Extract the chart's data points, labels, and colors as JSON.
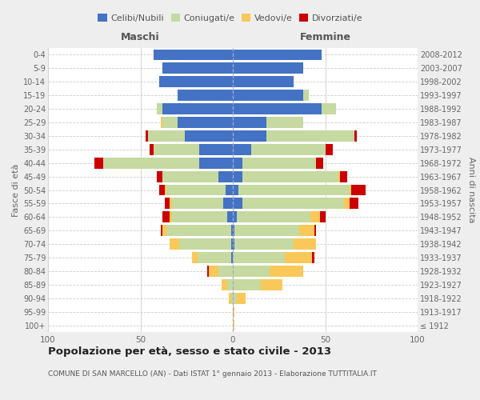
{
  "age_groups": [
    "100+",
    "95-99",
    "90-94",
    "85-89",
    "80-84",
    "75-79",
    "70-74",
    "65-69",
    "60-64",
    "55-59",
    "50-54",
    "45-49",
    "40-44",
    "35-39",
    "30-34",
    "25-29",
    "20-24",
    "15-19",
    "10-14",
    "5-9",
    "0-4"
  ],
  "birth_years": [
    "≤ 1912",
    "1913-1917",
    "1918-1922",
    "1923-1927",
    "1928-1932",
    "1933-1937",
    "1938-1942",
    "1943-1947",
    "1948-1952",
    "1953-1957",
    "1958-1962",
    "1963-1967",
    "1968-1972",
    "1973-1977",
    "1978-1982",
    "1983-1987",
    "1988-1992",
    "1993-1997",
    "1998-2002",
    "2003-2007",
    "2008-2012"
  ],
  "colors": {
    "celibe": "#4472C4",
    "coniugato": "#C5D9A0",
    "vedovo": "#FAC858",
    "divorziato": "#CC0000"
  },
  "males": {
    "celibe": [
      0,
      0,
      0,
      0,
      0,
      1,
      1,
      1,
      3,
      5,
      4,
      8,
      18,
      18,
      26,
      30,
      38,
      30,
      40,
      38,
      43
    ],
    "coniugato": [
      0,
      0,
      1,
      3,
      8,
      18,
      28,
      35,
      30,
      28,
      32,
      30,
      52,
      25,
      20,
      8,
      3,
      0,
      0,
      0,
      0
    ],
    "vedovo": [
      0,
      0,
      1,
      3,
      5,
      3,
      5,
      2,
      1,
      1,
      1,
      0,
      0,
      0,
      0,
      1,
      0,
      0,
      0,
      0,
      0
    ],
    "divorziato": [
      0,
      0,
      0,
      0,
      1,
      0,
      0,
      1,
      4,
      3,
      3,
      3,
      5,
      2,
      1,
      0,
      0,
      0,
      0,
      0,
      0
    ]
  },
  "females": {
    "nubile": [
      0,
      0,
      0,
      0,
      0,
      0,
      1,
      1,
      2,
      5,
      3,
      5,
      5,
      10,
      18,
      18,
      48,
      38,
      33,
      38,
      48
    ],
    "coniugata": [
      0,
      0,
      2,
      15,
      20,
      28,
      32,
      35,
      40,
      55,
      60,
      52,
      40,
      40,
      48,
      20,
      8,
      3,
      0,
      0,
      0
    ],
    "vedova": [
      1,
      1,
      5,
      12,
      18,
      15,
      12,
      8,
      5,
      3,
      1,
      1,
      0,
      0,
      0,
      0,
      0,
      0,
      0,
      0,
      0
    ],
    "divorziata": [
      0,
      0,
      0,
      0,
      0,
      1,
      0,
      1,
      3,
      5,
      8,
      4,
      4,
      4,
      1,
      0,
      0,
      0,
      0,
      0,
      0
    ]
  },
  "xlim": 100,
  "title": "Popolazione per età, sesso e stato civile - 2013",
  "subtitle": "COMUNE DI SAN MARCELLO (AN) - Dati ISTAT 1° gennaio 2013 - Elaborazione TUTTITALIA.IT",
  "ylabel_left": "Fasce di età",
  "ylabel_right": "Anni di nascita",
  "xlabel_left": "Maschi",
  "xlabel_right": "Femmine",
  "bg_color": "#eeeeee",
  "plot_bg_color": "#ffffff"
}
